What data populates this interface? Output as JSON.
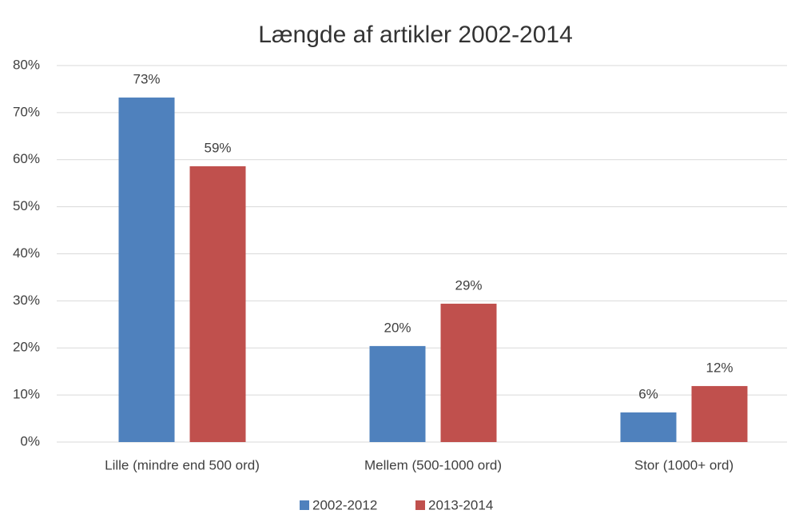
{
  "chart_data": {
    "type": "bar",
    "title": "Længde af artikler 2002-2014",
    "categories": [
      "Lille (mindre end 500 ord)",
      "Mellem (500-1000 ord)",
      "Stor (1000+ ord)"
    ],
    "series": [
      {
        "name": "2002-2012",
        "color": "#4f81bd",
        "values": [
          73.2,
          20.4,
          6.3
        ],
        "value_labels": [
          "73%",
          "20%",
          "6%"
        ]
      },
      {
        "name": "2013-2014",
        "color": "#c0504d",
        "values": [
          58.6,
          29.4,
          11.9
        ],
        "value_labels": [
          "59%",
          "29%",
          "12%"
        ]
      }
    ],
    "ylim": [
      0,
      80
    ],
    "yticks": [
      {
        "value": 0,
        "label": "0%"
      },
      {
        "value": 10,
        "label": "10%"
      },
      {
        "value": 20,
        "label": "20%"
      },
      {
        "value": 30,
        "label": "30%"
      },
      {
        "value": 40,
        "label": "40%"
      },
      {
        "value": 50,
        "label": "50%"
      },
      {
        "value": 60,
        "label": "60%"
      },
      {
        "value": 70,
        "label": "70%"
      },
      {
        "value": 80,
        "label": "80%"
      }
    ],
    "grid": true,
    "legend": "bottom"
  }
}
